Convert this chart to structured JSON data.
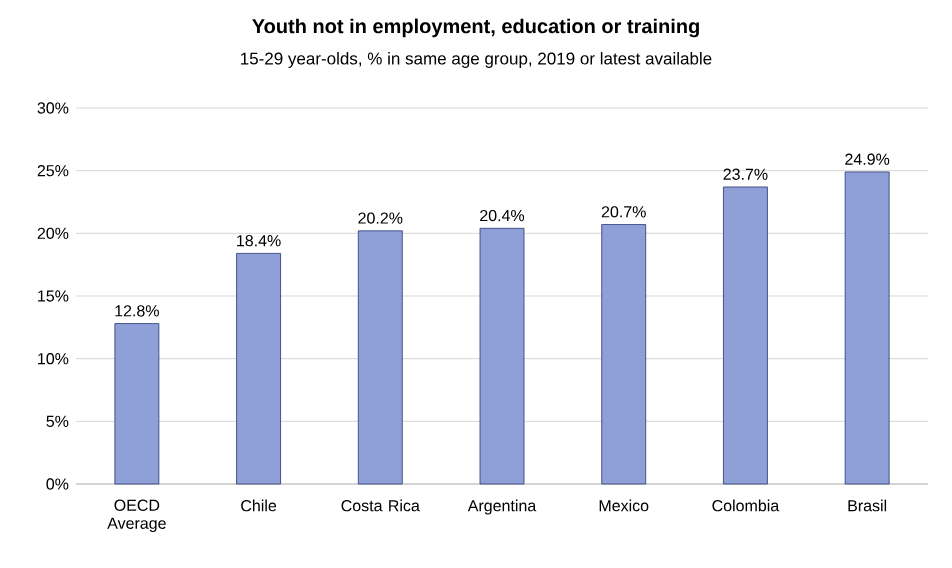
{
  "chart_data": {
    "type": "bar",
    "title": "Youth not in employment, education or training",
    "subtitle": "15-29 year-olds, % in same age group, 2019 or latest available",
    "categories": [
      "OECD Average",
      "Chile",
      "Costa Rica",
      "Argentina",
      "Mexico",
      "Colombia",
      "Brasil"
    ],
    "values": [
      12.8,
      18.4,
      20.2,
      20.4,
      20.7,
      23.7,
      24.9
    ],
    "value_labels": [
      "12.8%",
      "18.4%",
      "20.2%",
      "20.4%",
      "20.7%",
      "23.7%",
      "24.9%"
    ],
    "color": "#8fa0d8",
    "ylim": [
      0,
      30
    ],
    "yticks": [
      {
        "value": 0,
        "label": "0%"
      },
      {
        "value": 5,
        "label": "5%"
      },
      {
        "value": 10,
        "label": "10%"
      },
      {
        "value": 15,
        "label": "15%"
      },
      {
        "value": 20,
        "label": "20%"
      },
      {
        "value": 25,
        "label": "25%"
      },
      {
        "value": 30,
        "label": "30%"
      }
    ],
    "grid": "y"
  }
}
